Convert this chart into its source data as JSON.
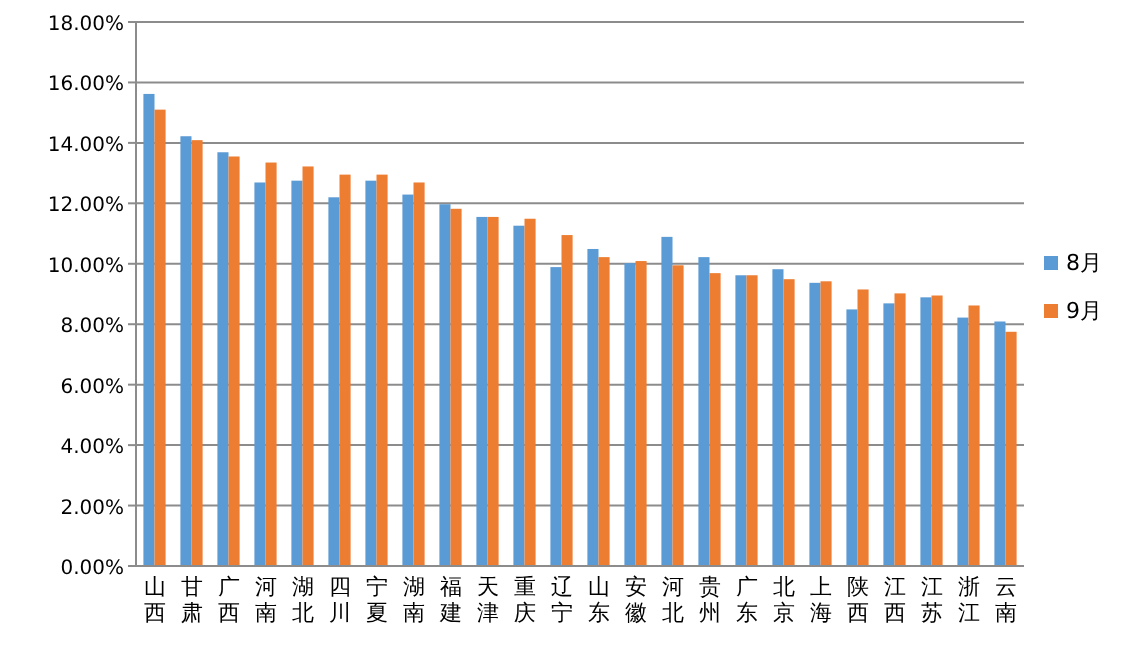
{
  "chart_data": {
    "type": "bar",
    "categories": [
      "山西",
      "甘肃",
      "广西",
      "河南",
      "湖北",
      "四川",
      "宁夏",
      "湖南",
      "福建",
      "天津",
      "重庆",
      "辽宁",
      "山东",
      "安徽",
      "河北",
      "贵州",
      "广东",
      "北京",
      "上海",
      "陕西",
      "江西",
      "江苏",
      "浙江",
      "云南"
    ],
    "series": [
      {
        "name": "8月",
        "color": "#5b9bd5",
        "values": [
          15.62,
          14.22,
          13.69,
          12.69,
          12.75,
          12.2,
          12.75,
          12.29,
          11.97,
          11.55,
          11.26,
          9.89,
          10.49,
          10.02,
          10.89,
          10.22,
          9.62,
          9.82,
          9.37,
          8.49,
          8.69,
          8.89,
          8.22,
          8.09
        ]
      },
      {
        "name": "9月",
        "color": "#ed7d31",
        "values": [
          15.1,
          14.09,
          13.55,
          13.35,
          13.22,
          12.95,
          12.95,
          12.69,
          11.82,
          11.55,
          11.49,
          10.95,
          10.22,
          10.09,
          9.95,
          9.69,
          9.62,
          9.49,
          9.42,
          9.15,
          9.02,
          8.95,
          8.62,
          7.75
        ]
      }
    ],
    "ylim": [
      0,
      18
    ],
    "yticks": [
      {
        "value": 0,
        "label": "0.00%"
      },
      {
        "value": 2,
        "label": "2.00%"
      },
      {
        "value": 4,
        "label": "4.00%"
      },
      {
        "value": 6,
        "label": "6.00%"
      },
      {
        "value": 8,
        "label": "8.00%"
      },
      {
        "value": 10,
        "label": "10.00%"
      },
      {
        "value": 12,
        "label": "12.00%"
      },
      {
        "value": 14,
        "label": "14.00%"
      },
      {
        "value": 16,
        "label": "16.00%"
      },
      {
        "value": 18,
        "label": "18.00%"
      }
    ],
    "grid": "y",
    "legend": "right"
  }
}
